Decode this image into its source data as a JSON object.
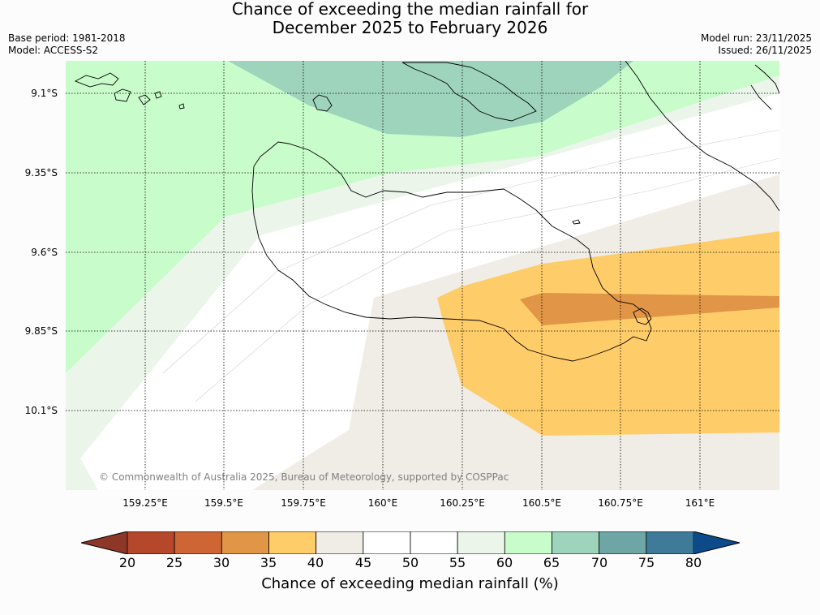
{
  "title": {
    "line1": "Chance of exceeding the median rainfall for",
    "line2": "December 2025 to February 2026"
  },
  "meta": {
    "base_period": "Base period: 1981-2018",
    "model": "Model: ACCESS-S2",
    "model_run": "Model run: 23/11/2025",
    "issued": "Issued: 26/11/2025"
  },
  "map": {
    "latitude_labels": [
      "9.1°S",
      "9.35°S",
      "9.6°S",
      "9.85°S",
      "10.1°S"
    ],
    "longitude_labels": [
      "159.25°E",
      "159.5°E",
      "159.75°E",
      "160°E",
      "160.25°E",
      "160.5°E",
      "160.75°E",
      "161°E"
    ],
    "copyright": "© Commonwealth of Australia 2025, Bureau of Meteorology, supported by COSPPac"
  },
  "colorbar": {
    "ticks": [
      "20",
      "25",
      "30",
      "35",
      "40",
      "45",
      "50",
      "55",
      "60",
      "65",
      "70",
      "75",
      "80"
    ],
    "colors": [
      "#b5482a",
      "#cd6535",
      "#e19547",
      "#fecc69",
      "#f0ece6",
      "#ffffff",
      "#ffffff",
      "#ebf5ea",
      "#c8fcca",
      "#9ed3bc",
      "#6ea6a6",
      "#3f7b99"
    ],
    "under_color": "#8e3627",
    "over_color": "#0d4a8a",
    "label": "Chance of exceeding median rainfall (%)"
  }
}
